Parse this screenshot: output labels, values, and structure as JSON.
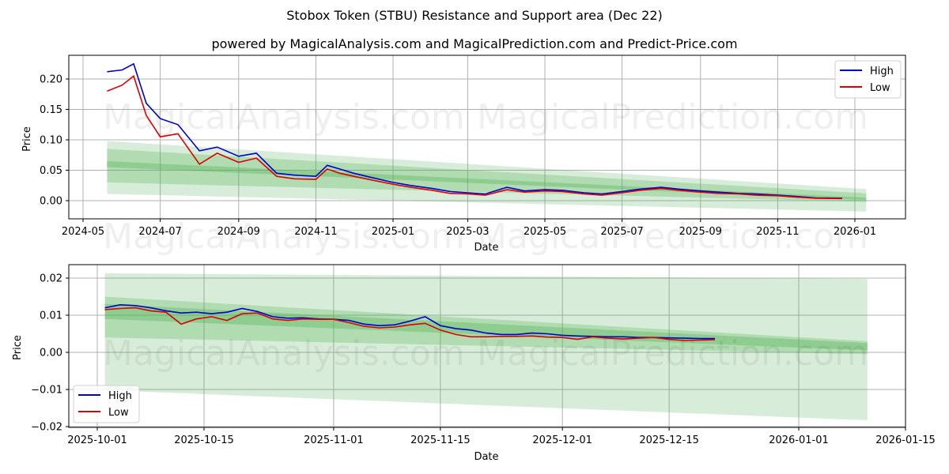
{
  "header": {
    "title": "Stobox Token (STBU) Resistance and Support area (Dec 22)",
    "subtitle": "powered by MagicalAnalysis.com and MagicalPrediction.com and Predict-Price.com"
  },
  "watermarks": {
    "left": "MagicalAnalysis.com",
    "right": "MagicalPrediction.com"
  },
  "colors": {
    "high": "#0000cc",
    "low": "#dd0000",
    "band": "#4caf50",
    "grid": "#b0b0b0"
  },
  "top_chart": {
    "xlabel": "Date",
    "ylabel": "Price",
    "x_ticks": [
      "2024-05",
      "2024-07",
      "2024-09",
      "2024-11",
      "2025-01",
      "2025-03",
      "2025-05",
      "2025-07",
      "2025-09",
      "2025-11",
      "2026-01"
    ],
    "y_ticks": [
      "0.00",
      "0.05",
      "0.10",
      "0.15",
      "0.20"
    ],
    "legend": {
      "high": "High",
      "low": "Low"
    }
  },
  "bottom_chart": {
    "xlabel": "Date",
    "ylabel": "Price",
    "x_ticks": [
      "2025-10-01",
      "2025-10-15",
      "2025-11-01",
      "2025-11-15",
      "2025-12-01",
      "2025-12-15",
      "2026-01-01",
      "2026-01-15"
    ],
    "y_ticks": [
      "0.02",
      "0.01",
      "0.00",
      "−0.01",
      "−0.02"
    ],
    "legend": {
      "high": "High",
      "low": "Low"
    }
  },
  "chart_data": [
    {
      "type": "line",
      "title": "Stobox Token (STBU) Resistance and Support area (Dec 22)",
      "subtitle": "powered by MagicalAnalysis.com and MagicalPrediction.com and Predict-Price.com",
      "xlabel": "Date",
      "ylabel": "Price",
      "ylim": [
        -0.03,
        0.24
      ],
      "xlim": [
        "2024-04-20",
        "2026-02-10"
      ],
      "grid": true,
      "legend_position": "upper right",
      "x": [
        "2024-05-20",
        "2024-06-01",
        "2024-06-10",
        "2024-06-20",
        "2024-07-01",
        "2024-07-15",
        "2024-08-01",
        "2024-08-15",
        "2024-09-01",
        "2024-09-15",
        "2024-10-01",
        "2024-10-15",
        "2024-11-01",
        "2024-11-10",
        "2024-11-20",
        "2024-12-01",
        "2024-12-15",
        "2025-01-01",
        "2025-01-15",
        "2025-02-01",
        "2025-02-15",
        "2025-03-01",
        "2025-03-15",
        "2025-04-01",
        "2025-04-15",
        "2025-05-01",
        "2025-05-15",
        "2025-06-01",
        "2025-06-15",
        "2025-07-01",
        "2025-07-15",
        "2025-08-01",
        "2025-08-15",
        "2025-09-01",
        "2025-09-15",
        "2025-10-01",
        "2025-10-15",
        "2025-11-01",
        "2025-11-15",
        "2025-12-01",
        "2025-12-22"
      ],
      "series": [
        {
          "name": "High",
          "color": "#0000cc",
          "values": [
            0.212,
            0.215,
            0.225,
            0.16,
            0.135,
            0.125,
            0.082,
            0.088,
            0.073,
            0.078,
            0.045,
            0.042,
            0.04,
            0.058,
            0.052,
            0.045,
            0.038,
            0.03,
            0.025,
            0.02,
            0.015,
            0.013,
            0.011,
            0.022,
            0.016,
            0.018,
            0.017,
            0.013,
            0.011,
            0.015,
            0.019,
            0.022,
            0.019,
            0.016,
            0.014,
            0.012,
            0.011,
            0.009,
            0.007,
            0.0045,
            0.004
          ]
        },
        {
          "name": "Low",
          "color": "#dd0000",
          "values": [
            0.18,
            0.19,
            0.205,
            0.14,
            0.105,
            0.11,
            0.06,
            0.078,
            0.063,
            0.07,
            0.04,
            0.036,
            0.035,
            0.052,
            0.045,
            0.04,
            0.034,
            0.027,
            0.022,
            0.017,
            0.012,
            0.011,
            0.009,
            0.018,
            0.014,
            0.016,
            0.015,
            0.011,
            0.009,
            0.013,
            0.017,
            0.02,
            0.017,
            0.014,
            0.012,
            0.011,
            0.009,
            0.008,
            0.006,
            0.004,
            0.0035
          ]
        }
      ],
      "bands": [
        {
          "name": "outer resistance/support area",
          "x_start": "2024-05-20",
          "x_end": "2026-01-10",
          "upper_start": 0.098,
          "upper_end": 0.019,
          "lower_start": 0.011,
          "lower_end": -0.018
        },
        {
          "name": "inner area",
          "x_start": "2024-05-20",
          "x_end": "2026-01-10",
          "upper_start": 0.085,
          "upper_end": 0.012,
          "lower_start": 0.03,
          "lower_end": -0.002
        },
        {
          "name": "core trend",
          "x_start": "2024-05-20",
          "x_end": "2026-01-10",
          "upper_start": 0.065,
          "upper_end": 0.005,
          "lower_start": 0.055,
          "lower_end": 0.001
        }
      ]
    },
    {
      "type": "line",
      "xlabel": "Date",
      "ylabel": "Price",
      "ylim": [
        -0.02,
        0.0235
      ],
      "xlim": [
        "2025-09-28",
        "2026-01-15"
      ],
      "grid": true,
      "legend_position": "lower left",
      "x": [
        "2025-10-02",
        "2025-10-04",
        "2025-10-06",
        "2025-10-08",
        "2025-10-10",
        "2025-10-12",
        "2025-10-14",
        "2025-10-16",
        "2025-10-18",
        "2025-10-20",
        "2025-10-22",
        "2025-10-24",
        "2025-10-26",
        "2025-10-28",
        "2025-10-30",
        "2025-11-01",
        "2025-11-03",
        "2025-11-05",
        "2025-11-07",
        "2025-11-09",
        "2025-11-11",
        "2025-11-13",
        "2025-11-15",
        "2025-11-17",
        "2025-11-19",
        "2025-11-21",
        "2025-11-23",
        "2025-11-25",
        "2025-11-27",
        "2025-11-29",
        "2025-12-01",
        "2025-12-03",
        "2025-12-05",
        "2025-12-07",
        "2025-12-09",
        "2025-12-11",
        "2025-12-13",
        "2025-12-15",
        "2025-12-17",
        "2025-12-19",
        "2025-12-21"
      ],
      "series": [
        {
          "name": "High",
          "color": "#0000cc",
          "values": [
            0.012,
            0.0128,
            0.0126,
            0.012,
            0.0112,
            0.0106,
            0.0108,
            0.0104,
            0.0108,
            0.0118,
            0.011,
            0.0096,
            0.0092,
            0.0093,
            0.009,
            0.0089,
            0.0086,
            0.0076,
            0.0072,
            0.0074,
            0.0084,
            0.0096,
            0.0072,
            0.0064,
            0.006,
            0.0052,
            0.0048,
            0.0048,
            0.0052,
            0.005,
            0.0046,
            0.0044,
            0.0043,
            0.0042,
            0.0042,
            0.004,
            0.004,
            0.0039,
            0.0038,
            0.0037,
            0.0037
          ]
        },
        {
          "name": "Low",
          "color": "#dd0000",
          "values": [
            0.0115,
            0.0118,
            0.012,
            0.0112,
            0.0108,
            0.0076,
            0.009,
            0.0096,
            0.0086,
            0.0104,
            0.0106,
            0.009,
            0.0086,
            0.009,
            0.0089,
            0.0089,
            0.008,
            0.007,
            0.0066,
            0.0068,
            0.0074,
            0.0078,
            0.006,
            0.0048,
            0.0042,
            0.0042,
            0.0043,
            0.0043,
            0.0044,
            0.0041,
            0.004,
            0.0035,
            0.0042,
            0.0038,
            0.0036,
            0.0038,
            0.004,
            0.0035,
            0.0032,
            0.0033,
            0.0034
          ]
        }
      ],
      "bands": [
        {
          "name": "outer resistance/support area",
          "x_start": "2025-10-02",
          "x_end": "2026-01-10",
          "upper_start": 0.0213,
          "upper_end": 0.0198,
          "lower_start": -0.0102,
          "lower_end": -0.0183
        },
        {
          "name": "mid area",
          "x_start": "2025-10-02",
          "x_end": "2026-01-10",
          "upper_start": 0.015,
          "upper_end": 0.003,
          "lower_start": 0.004,
          "lower_end": -0.0005
        },
        {
          "name": "core trend",
          "x_start": "2025-10-02",
          "x_end": "2026-01-10",
          "upper_start": 0.013,
          "upper_end": 0.0025,
          "lower_start": 0.009,
          "lower_end": 0.0005
        }
      ]
    }
  ]
}
